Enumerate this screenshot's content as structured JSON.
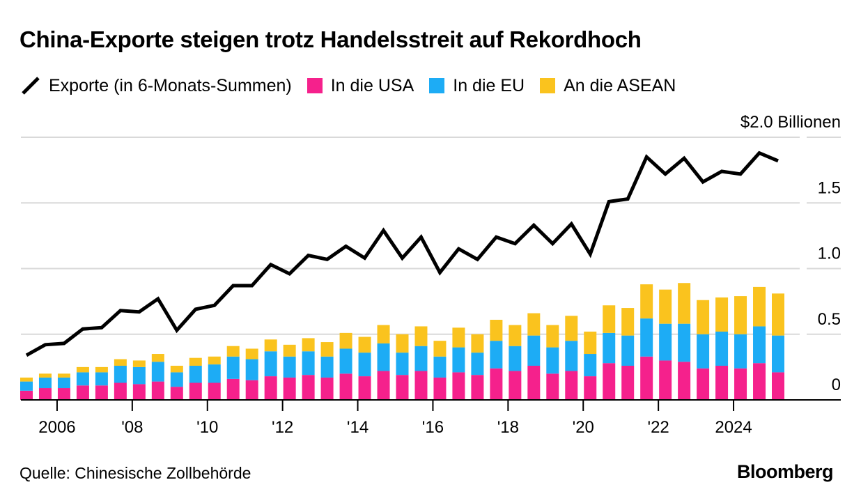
{
  "title": "China-Exporte steigen trotz Handelsstreit auf Rekordhoch",
  "legend": [
    {
      "label": "Exporte (in 6-Monats-Summen)",
      "color": "#000000",
      "kind": "line"
    },
    {
      "label": "In die USA",
      "color": "#F5218C",
      "kind": "bar"
    },
    {
      "label": "In die EU",
      "color": "#1DACF5",
      "kind": "bar"
    },
    {
      "label": "An die ASEAN",
      "color": "#FAC31E",
      "kind": "bar"
    }
  ],
  "source": "Quelle: Chinesische Zollbehörde",
  "brand": "Bloomberg",
  "chart_data": {
    "type": "bar",
    "stacked": true,
    "unit_label": "$2.0 Billionen",
    "ylim": [
      0,
      2.0
    ],
    "yticks": [
      {
        "value": 0,
        "label": "0"
      },
      {
        "value": 0.5,
        "label": "0.5"
      },
      {
        "value": 1.0,
        "label": "1.0"
      },
      {
        "value": 1.5,
        "label": "1.5"
      },
      {
        "value": 2.0,
        "label": "$2.0 Billionen"
      }
    ],
    "xlim": [
      2005.0,
      2025.5
    ],
    "xticks": [
      {
        "value": 2006,
        "label": "2006"
      },
      {
        "value": 2008,
        "label": "'08"
      },
      {
        "value": 2010,
        "label": "'10"
      },
      {
        "value": 2012,
        "label": "'12"
      },
      {
        "value": 2014,
        "label": "'14"
      },
      {
        "value": 2016,
        "label": "'16"
      },
      {
        "value": 2018,
        "label": "'18"
      },
      {
        "value": 2020,
        "label": "'20"
      },
      {
        "value": 2022,
        "label": "'22"
      },
      {
        "value": 2024,
        "label": "2024"
      }
    ],
    "grid": true,
    "legend_position": "top",
    "periods": [
      "H1 2005",
      "H2 2005",
      "H1 2006",
      "H2 2006",
      "H1 2007",
      "H2 2007",
      "H1 2008",
      "H2 2008",
      "H1 2009",
      "H2 2009",
      "H1 2010",
      "H2 2010",
      "H1 2011",
      "H2 2011",
      "H1 2012",
      "H2 2012",
      "H1 2013",
      "H2 2013",
      "H1 2014",
      "H2 2014",
      "H1 2015",
      "H2 2015",
      "H1 2016",
      "H2 2016",
      "H1 2017",
      "H2 2017",
      "H1 2018",
      "H2 2018",
      "H1 2019",
      "H2 2019",
      "H1 2020",
      "H2 2020",
      "H1 2021",
      "H2 2021",
      "H1 2022",
      "H2 2022",
      "H1 2023",
      "H2 2023",
      "H1 2024",
      "H2 2024",
      "H1 2025"
    ],
    "x": [
      2005.0,
      2005.5,
      2006.0,
      2006.5,
      2007.0,
      2007.5,
      2008.0,
      2008.5,
      2009.0,
      2009.5,
      2010.0,
      2010.5,
      2011.0,
      2011.5,
      2012.0,
      2012.5,
      2013.0,
      2013.5,
      2014.0,
      2014.5,
      2015.0,
      2015.5,
      2016.0,
      2016.5,
      2017.0,
      2017.5,
      2018.0,
      2018.5,
      2019.0,
      2019.5,
      2020.0,
      2020.5,
      2021.0,
      2021.5,
      2022.0,
      2022.5,
      2023.0,
      2023.5,
      2024.0,
      2024.5,
      2025.0
    ],
    "series": [
      {
        "name": "In die USA",
        "color": "#F5218C",
        "values": [
          0.07,
          0.09,
          0.09,
          0.11,
          0.11,
          0.13,
          0.12,
          0.14,
          0.1,
          0.13,
          0.13,
          0.16,
          0.15,
          0.18,
          0.17,
          0.19,
          0.17,
          0.2,
          0.18,
          0.22,
          0.19,
          0.22,
          0.17,
          0.21,
          0.19,
          0.24,
          0.22,
          0.26,
          0.2,
          0.22,
          0.18,
          0.28,
          0.26,
          0.33,
          0.3,
          0.29,
          0.24,
          0.26,
          0.24,
          0.28,
          0.21
        ]
      },
      {
        "name": "In die EU",
        "color": "#1DACF5",
        "values": [
          0.07,
          0.08,
          0.08,
          0.1,
          0.1,
          0.13,
          0.13,
          0.15,
          0.11,
          0.13,
          0.14,
          0.17,
          0.16,
          0.19,
          0.16,
          0.18,
          0.16,
          0.19,
          0.18,
          0.21,
          0.17,
          0.19,
          0.16,
          0.19,
          0.17,
          0.21,
          0.19,
          0.23,
          0.2,
          0.23,
          0.17,
          0.23,
          0.23,
          0.29,
          0.28,
          0.29,
          0.26,
          0.26,
          0.26,
          0.28,
          0.28
        ]
      },
      {
        "name": "An die ASEAN",
        "color": "#FAC31E",
        "values": [
          0.03,
          0.03,
          0.03,
          0.04,
          0.04,
          0.05,
          0.05,
          0.06,
          0.05,
          0.06,
          0.06,
          0.08,
          0.08,
          0.09,
          0.09,
          0.1,
          0.11,
          0.12,
          0.12,
          0.14,
          0.14,
          0.15,
          0.12,
          0.15,
          0.14,
          0.16,
          0.16,
          0.17,
          0.17,
          0.19,
          0.17,
          0.21,
          0.21,
          0.26,
          0.26,
          0.31,
          0.26,
          0.26,
          0.29,
          0.3,
          0.32
        ]
      },
      {
        "name": "Exporte (in 6-Monats-Summen)",
        "color": "#000000",
        "type": "line",
        "values": [
          0.34,
          0.42,
          0.43,
          0.54,
          0.55,
          0.68,
          0.67,
          0.77,
          0.53,
          0.69,
          0.72,
          0.87,
          0.87,
          1.03,
          0.96,
          1.1,
          1.07,
          1.17,
          1.08,
          1.29,
          1.08,
          1.24,
          0.97,
          1.15,
          1.07,
          1.24,
          1.19,
          1.33,
          1.19,
          1.34,
          1.11,
          1.51,
          1.53,
          1.85,
          1.72,
          1.84,
          1.66,
          1.74,
          1.72,
          1.88,
          1.82
        ]
      }
    ]
  }
}
